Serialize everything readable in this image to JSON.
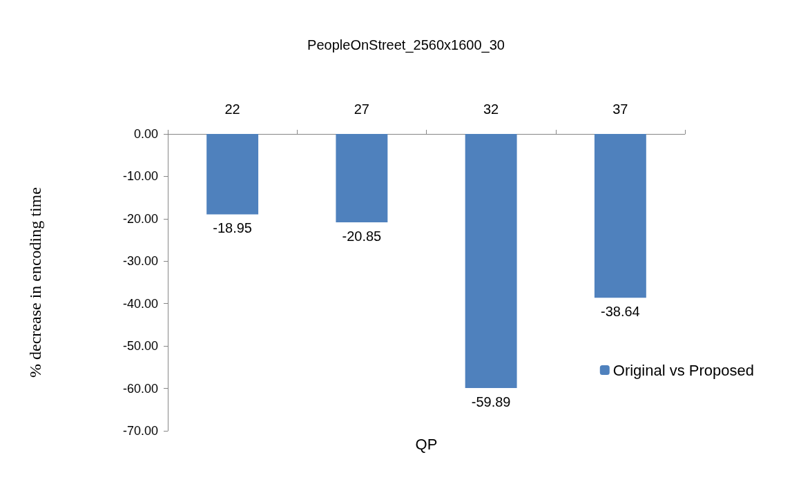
{
  "chart_data": {
    "type": "bar",
    "title": "PeopleOnStreet_2560x1600_30",
    "xlabel": "QP",
    "ylabel": "% decrease in encoding time",
    "categories": [
      "22",
      "27",
      "32",
      "37"
    ],
    "series": [
      {
        "name": "Original vs Proposed",
        "color": "#4f81bd",
        "values": [
          -18.95,
          -20.85,
          -59.89,
          -38.64
        ]
      }
    ],
    "ylim": [
      -70,
      0
    ],
    "yticks": [
      {
        "value": 0,
        "label": "0.00"
      },
      {
        "value": -10,
        "label": "-10.00"
      },
      {
        "value": -20,
        "label": "-20.00"
      },
      {
        "value": -30,
        "label": "-30.00"
      },
      {
        "value": -40,
        "label": "-40.00"
      },
      {
        "value": -50,
        "label": "-50.00"
      },
      {
        "value": -60,
        "label": "-60.00"
      },
      {
        "value": -70,
        "label": "-70.00"
      }
    ],
    "grid": false,
    "legend": "bottom right",
    "data_labels": true
  }
}
